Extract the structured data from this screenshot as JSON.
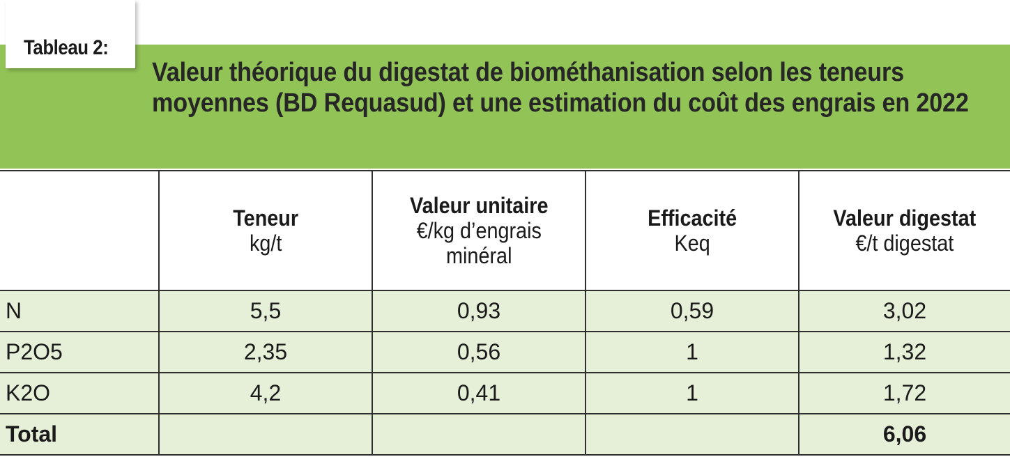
{
  "table_label": "Tableau 2:",
  "title": "Valeur théorique du digestat de biométhanisation selon les teneurs moyennes (BD Requasud) et une estimation du coût des engrais en 2022",
  "colors": {
    "band": "#92c356",
    "row_bg": "#e6f0d8",
    "border": "#2e2e2e"
  },
  "columns": [
    {
      "bold": "",
      "sub1": "",
      "sub2": ""
    },
    {
      "bold": "Teneur",
      "sub1": "kg/t",
      "sub2": ""
    },
    {
      "bold": "Valeur unitaire",
      "sub1": "€/kg d’engrais",
      "sub2": "minéral"
    },
    {
      "bold": "Efficacité",
      "sub1": "Keq",
      "sub2": ""
    },
    {
      "bold": "Valeur digestat",
      "sub1": "€/t digestat",
      "sub2": ""
    }
  ],
  "rows": [
    [
      "N",
      "5,5",
      "0,93",
      "0,59",
      "3,02"
    ],
    [
      "P2O5",
      "2,35",
      "0,56",
      "1",
      "1,32"
    ],
    [
      "K2O",
      "4,2",
      "0,41",
      "1",
      "1,72"
    ]
  ],
  "total": [
    "Total",
    "",
    "",
    "",
    "6,06"
  ]
}
